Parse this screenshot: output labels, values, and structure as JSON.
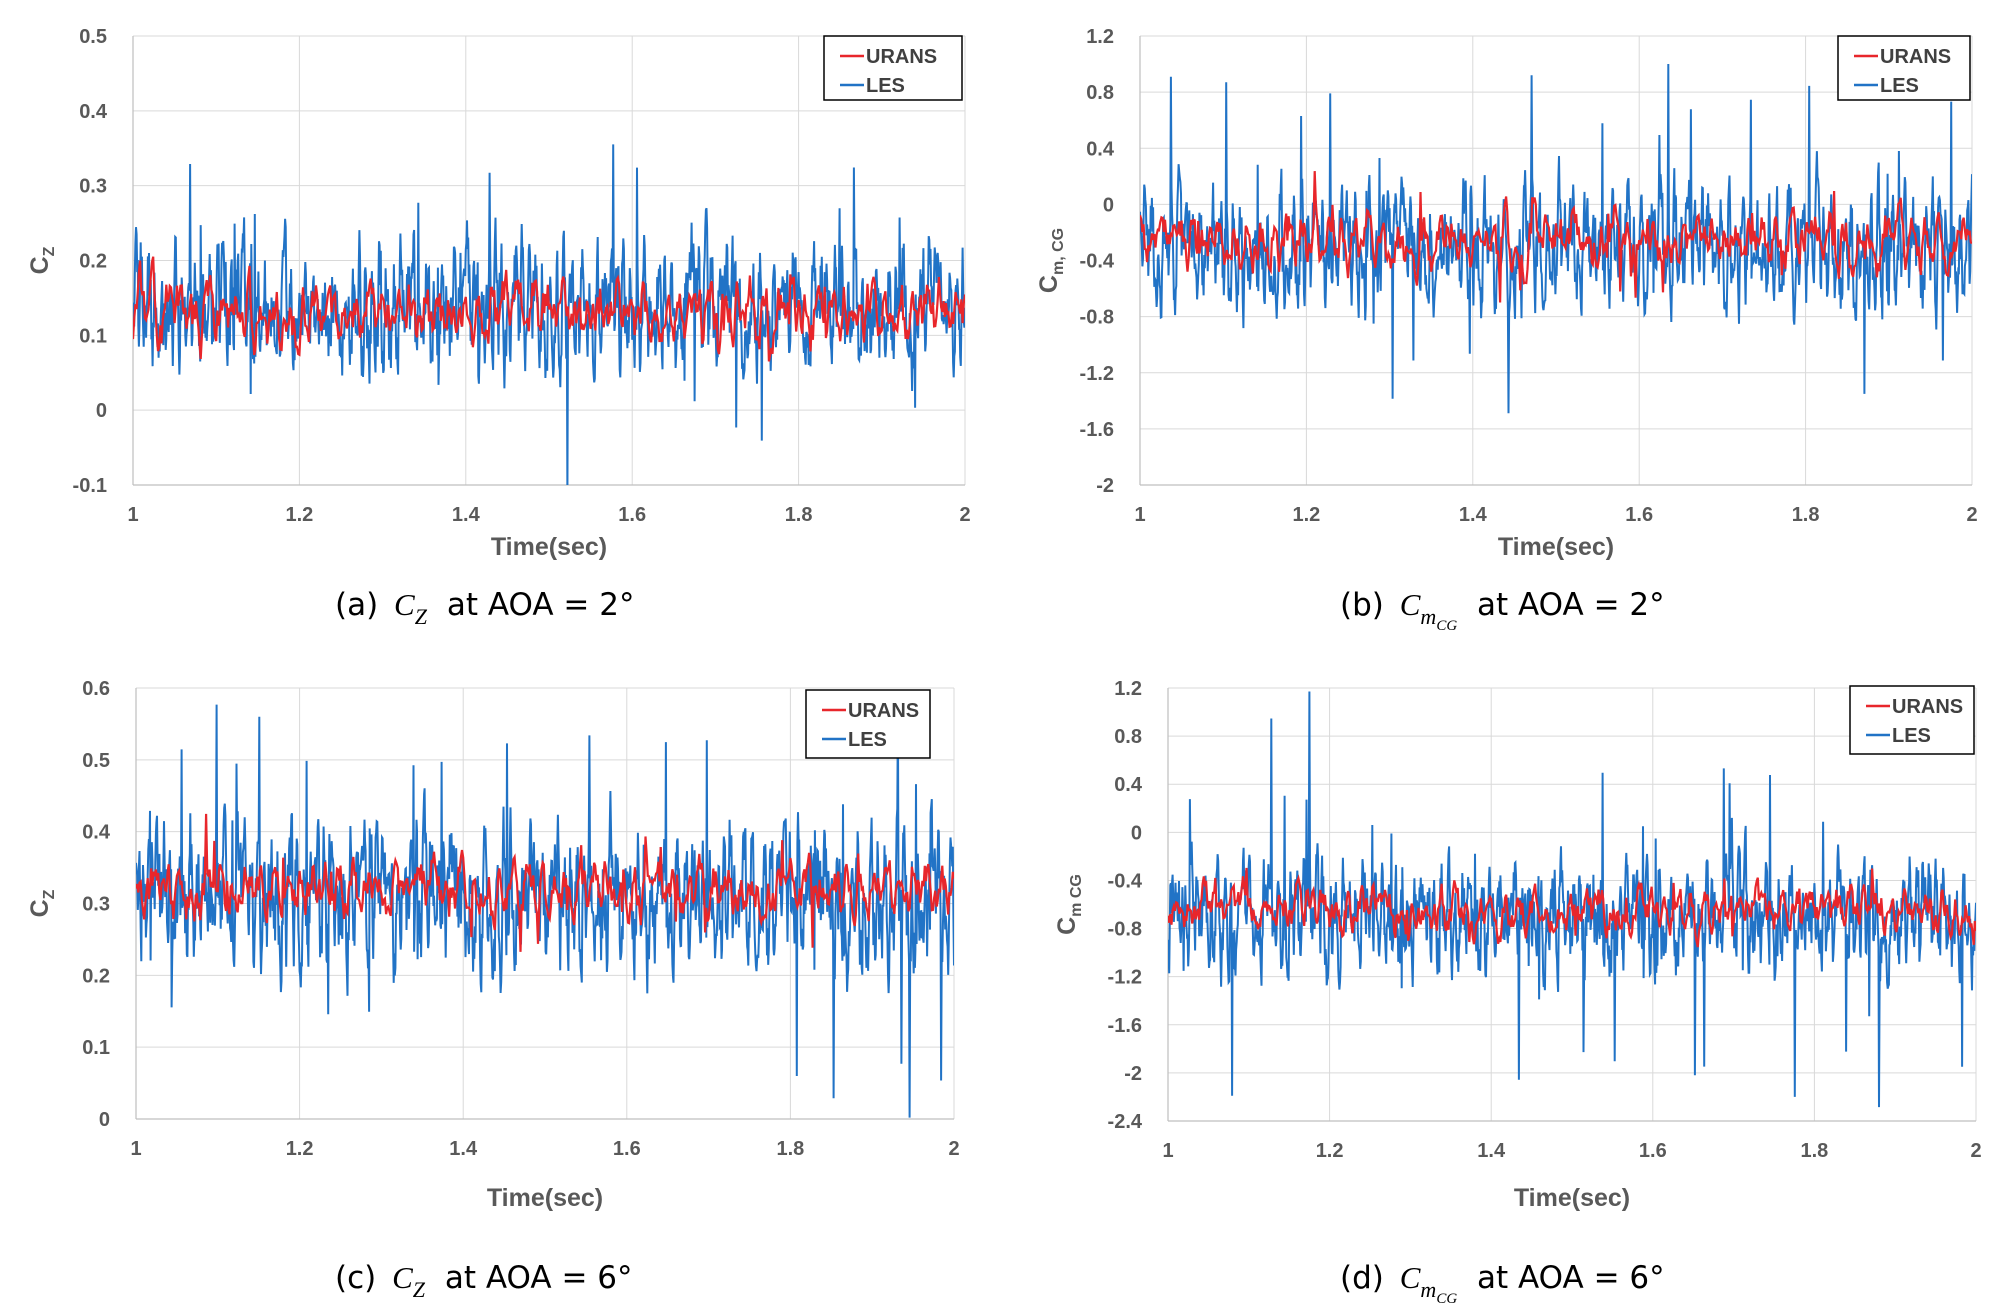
{
  "chart_data": [
    {
      "id": "a",
      "type": "line",
      "title": "",
      "caption": {
        "prefix": "(a)",
        "symbol": "C",
        "sub": "Z",
        "suffix": "at AOA = 2°"
      },
      "xlabel": "Time(sec)",
      "ylabel": {
        "main": "C",
        "sub": "Z"
      },
      "xlim": [
        1,
        2
      ],
      "ylim": [
        -0.1,
        0.5
      ],
      "xticks": [
        "1",
        "1.2",
        "1.4",
        "1.6",
        "1.8",
        "2"
      ],
      "xtick_values": [
        1,
        1.2,
        1.4,
        1.6,
        1.8,
        2
      ],
      "yticks": [
        "-0.1",
        "0",
        "0.1",
        "0.2",
        "0.3",
        "0.4",
        "0.5"
      ],
      "ytick_values": [
        -0.1,
        0,
        0.1,
        0.2,
        0.3,
        0.4,
        0.5
      ],
      "grid": true,
      "legend_position": "top-right",
      "series": [
        {
          "name": "URANS",
          "color": "#e8262b",
          "mean": 0.13,
          "amp": 0.035,
          "spike_amp": 0.04,
          "points": 700,
          "seed": 11
        },
        {
          "name": "LES",
          "color": "#2173c6",
          "mean": 0.14,
          "amp": 0.065,
          "spike_amp": 0.17,
          "points": 1400,
          "seed": 12
        }
      ]
    },
    {
      "id": "b",
      "type": "line",
      "title": "",
      "caption": {
        "prefix": "(b)",
        "symbol": "C",
        "sub": "m",
        "subsub": "CG",
        "suffix": "at AOA = 2°"
      },
      "xlabel": "Time(sec)",
      "ylabel": {
        "main": "C",
        "sub": "m, CG"
      },
      "xlim": [
        1,
        2
      ],
      "ylim": [
        -2,
        1.2
      ],
      "xticks": [
        "1",
        "1.2",
        "1.4",
        "1.6",
        "1.8",
        "2"
      ],
      "xtick_values": [
        1,
        1.2,
        1.4,
        1.6,
        1.8,
        2
      ],
      "yticks": [
        "-2",
        "-1.6",
        "-1.2",
        "-0.8",
        "-0.4",
        "0",
        "0.4",
        "0.8",
        "1.2"
      ],
      "ytick_values": [
        -2,
        -1.6,
        -1.2,
        -0.8,
        -0.4,
        0,
        0.4,
        0.8,
        1.2
      ],
      "grid": true,
      "legend_position": "top-right",
      "series": [
        {
          "name": "URANS",
          "color": "#e8262b",
          "mean": -0.25,
          "amp": 0.16,
          "spike_amp": 0.25,
          "points": 700,
          "seed": 21
        },
        {
          "name": "LES",
          "color": "#2173c6",
          "mean": -0.3,
          "amp": 0.32,
          "spike_amp": 0.9,
          "points": 1400,
          "seed": 22
        }
      ]
    },
    {
      "id": "c",
      "type": "line",
      "title": "",
      "caption": {
        "prefix": "(c)",
        "symbol": "C",
        "sub": "Z",
        "suffix": "at AOA = 6°"
      },
      "xlabel": "Time(sec)",
      "ylabel": {
        "main": "C",
        "sub": "Z"
      },
      "xlim": [
        1,
        2
      ],
      "ylim": [
        0,
        0.6
      ],
      "xticks": [
        "1",
        "1.2",
        "1.4",
        "1.6",
        "1.8",
        "2"
      ],
      "xtick_values": [
        1,
        1.2,
        1.4,
        1.6,
        1.8,
        2
      ],
      "yticks": [
        "0",
        "0.1",
        "0.2",
        "0.3",
        "0.4",
        "0.5",
        "0.6"
      ],
      "ytick_values": [
        0,
        0.1,
        0.2,
        0.3,
        0.4,
        0.5,
        0.6
      ],
      "grid": true,
      "legend_position": "top-right",
      "series": [
        {
          "name": "URANS",
          "color": "#e8262b",
          "mean": 0.32,
          "amp": 0.03,
          "spike_amp": 0.06,
          "points": 700,
          "seed": 31
        },
        {
          "name": "LES",
          "color": "#2173c6",
          "mean": 0.31,
          "amp": 0.075,
          "spike_amp": 0.22,
          "points": 1400,
          "seed": 32
        }
      ]
    },
    {
      "id": "d",
      "type": "line",
      "title": "",
      "caption": {
        "prefix": "(d)",
        "symbol": "C",
        "sub": "m",
        "subsub": "CG",
        "suffix": "at AOA = 6°"
      },
      "xlabel": "Time(sec)",
      "ylabel": {
        "main": "C",
        "sub": "m CG"
      },
      "xlim": [
        1,
        2
      ],
      "ylim": [
        -2.4,
        1.2
      ],
      "xticks": [
        "1",
        "1.2",
        "1.4",
        "1.6",
        "1.8",
        "2"
      ],
      "xtick_values": [
        1,
        1.2,
        1.4,
        1.6,
        1.8,
        2
      ],
      "yticks": [
        "-2.4",
        "-2",
        "-1.6",
        "-1.2",
        "-0.8",
        "-0.4",
        "0",
        "0.4",
        "0.8",
        "1.2"
      ],
      "ytick_values": [
        -2.4,
        -2,
        -1.6,
        -1.2,
        -0.8,
        -0.4,
        0,
        0.4,
        0.8,
        1.2
      ],
      "grid": true,
      "legend_position": "top-right",
      "series": [
        {
          "name": "URANS",
          "color": "#e8262b",
          "mean": -0.65,
          "amp": 0.15,
          "spike_amp": 0.25,
          "points": 700,
          "seed": 41
        },
        {
          "name": "LES",
          "color": "#2173c6",
          "mean": -0.7,
          "amp": 0.35,
          "spike_amp": 1.1,
          "points": 1400,
          "seed": 42
        }
      ]
    }
  ]
}
